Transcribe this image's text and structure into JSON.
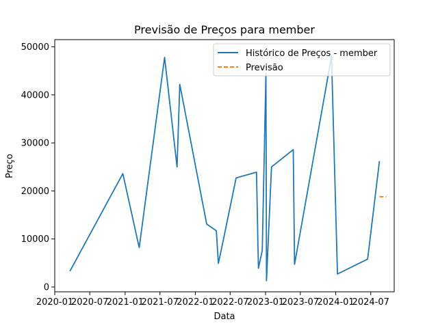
{
  "chart_data": {
    "type": "line",
    "title": "Previsão de Preços para member",
    "xlabel": "Data",
    "ylabel": "Preço",
    "xlim": [
      "2020-01-01",
      "2024-10-31"
    ],
    "ylim": [
      -1000,
      51500
    ],
    "x_ticks": [
      "2020-01",
      "2020-07",
      "2021-01",
      "2021-07",
      "2022-01",
      "2022-07",
      "2023-01",
      "2023-07",
      "2024-01",
      "2024-07"
    ],
    "y_ticks": [
      0,
      10000,
      20000,
      30000,
      40000,
      50000
    ],
    "grid": false,
    "legend_position": "top-right",
    "series": [
      {
        "name": "Histórico de Preços - member",
        "color": "#1f77b4",
        "style": "solid",
        "points": [
          {
            "x": "2020-03-20",
            "y": 3300
          },
          {
            "x": "2020-12-20",
            "y": 23600
          },
          {
            "x": "2021-03-15",
            "y": 8200
          },
          {
            "x": "2021-07-25",
            "y": 47800
          },
          {
            "x": "2021-09-28",
            "y": 25000
          },
          {
            "x": "2021-10-12",
            "y": 42200
          },
          {
            "x": "2022-03-01",
            "y": 13100
          },
          {
            "x": "2022-04-20",
            "y": 11700
          },
          {
            "x": "2022-05-01",
            "y": 4900
          },
          {
            "x": "2022-05-25",
            "y": 9500
          },
          {
            "x": "2022-08-01",
            "y": 22700
          },
          {
            "x": "2022-11-15",
            "y": 23900
          },
          {
            "x": "2022-11-25",
            "y": 3900
          },
          {
            "x": "2022-12-15",
            "y": 7600
          },
          {
            "x": "2023-01-03",
            "y": 44500
          },
          {
            "x": "2023-01-06",
            "y": 1300
          },
          {
            "x": "2023-02-01",
            "y": 25000
          },
          {
            "x": "2023-05-25",
            "y": 28600
          },
          {
            "x": "2023-06-01",
            "y": 4700
          },
          {
            "x": "2023-12-10",
            "y": 48000
          },
          {
            "x": "2024-01-10",
            "y": 2700
          },
          {
            "x": "2024-06-15",
            "y": 5800
          },
          {
            "x": "2024-08-15",
            "y": 26200
          }
        ]
      },
      {
        "name": "Previsão",
        "color": "#ff7f0e",
        "style": "dashed",
        "points": [
          {
            "x": "2024-08-15",
            "y": 18800
          },
          {
            "x": "2024-09-20",
            "y": 18800
          }
        ]
      }
    ]
  }
}
